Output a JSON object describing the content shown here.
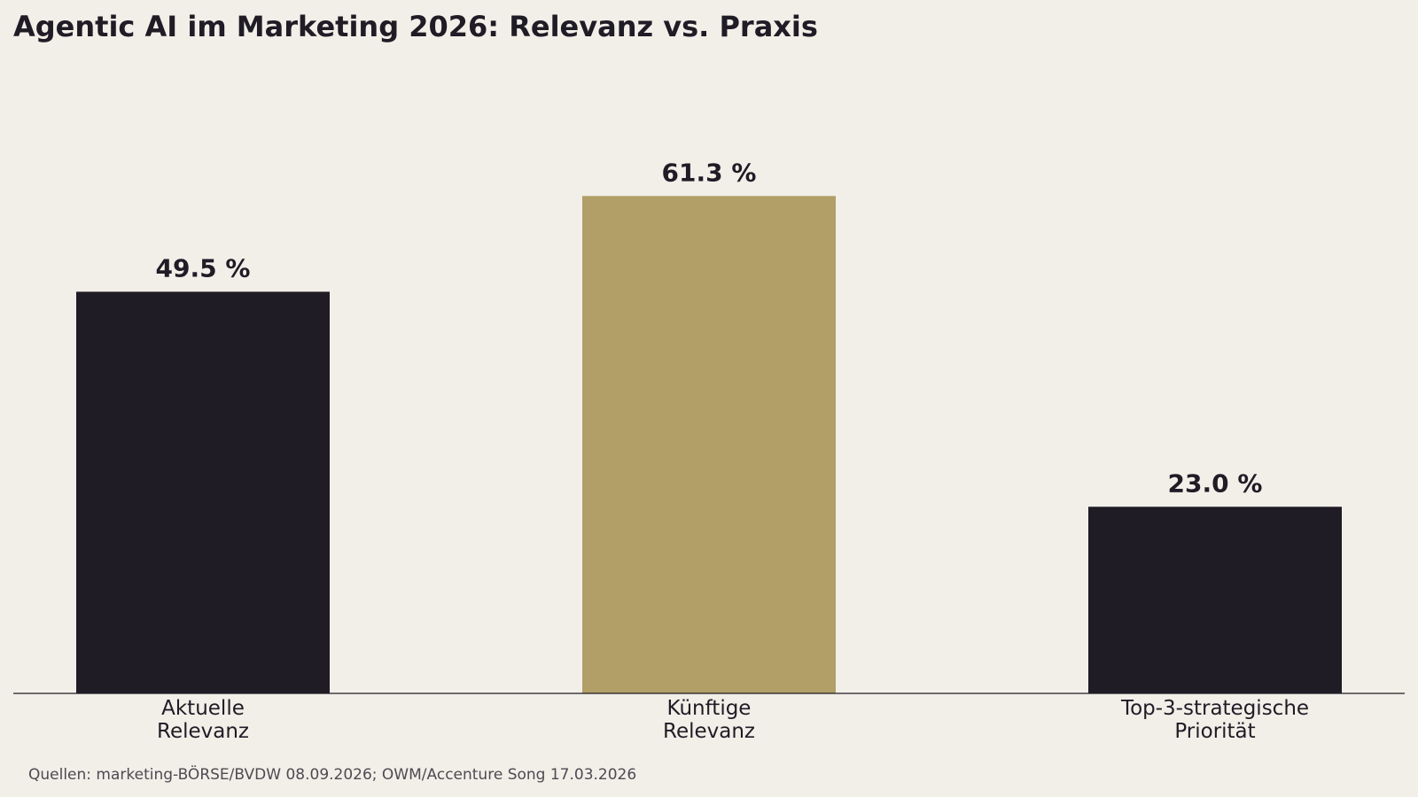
{
  "chart_data": {
    "type": "bar",
    "title": "Agentic AI im Marketing 2026: Relevanz vs. Praxis",
    "categories": [
      [
        "Aktuelle",
        "Relevanz"
      ],
      [
        "Künftige",
        "Relevanz"
      ],
      [
        "Top-3-strategische",
        "Priorität"
      ]
    ],
    "values": [
      49.5,
      61.3,
      23.0
    ],
    "value_labels": [
      "49.5 %",
      "61.3 %",
      "23.0 %"
    ],
    "bar_colors": [
      "#1f1c26",
      "#b19f67",
      "#1f1c26"
    ],
    "ylim": [
      0,
      75
    ],
    "y_axis_visible": false,
    "grid": false,
    "legend": "none",
    "source": "Quellen: marketing-BÖRSE/BVDW 08.09.2026; OWM/Accenture Song 17.03.2026"
  },
  "colors": {
    "background": "#f2efe9",
    "text": "#1f1c26",
    "accent": "#b19f67",
    "source_text": "#4d4a52"
  }
}
